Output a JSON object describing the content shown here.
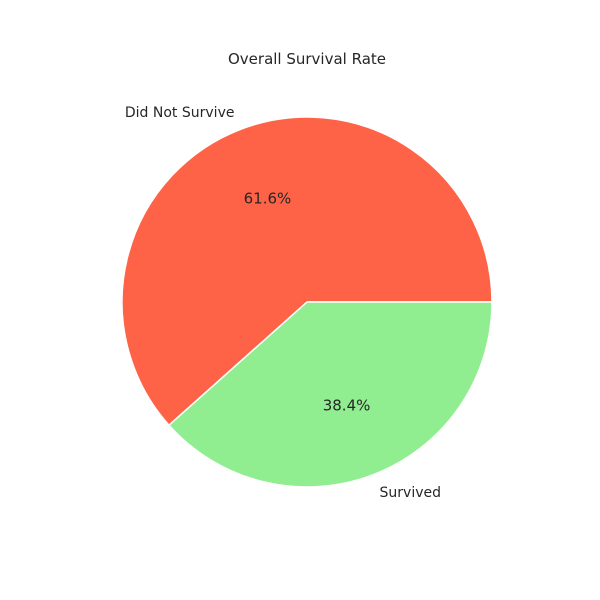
{
  "chart_data": {
    "type": "pie",
    "title": "Overall Survival Rate",
    "slices": [
      {
        "label": "Did Not Survive",
        "value": 61.6,
        "pct_label": "61.6%",
        "color": "#ff6347"
      },
      {
        "label": "Survived",
        "value": 38.4,
        "pct_label": "38.4%",
        "color": "#90ee90"
      }
    ],
    "start_angle_deg": 0,
    "direction": "counterclockwise",
    "edge_color": "#ffffff",
    "legend": "none"
  }
}
